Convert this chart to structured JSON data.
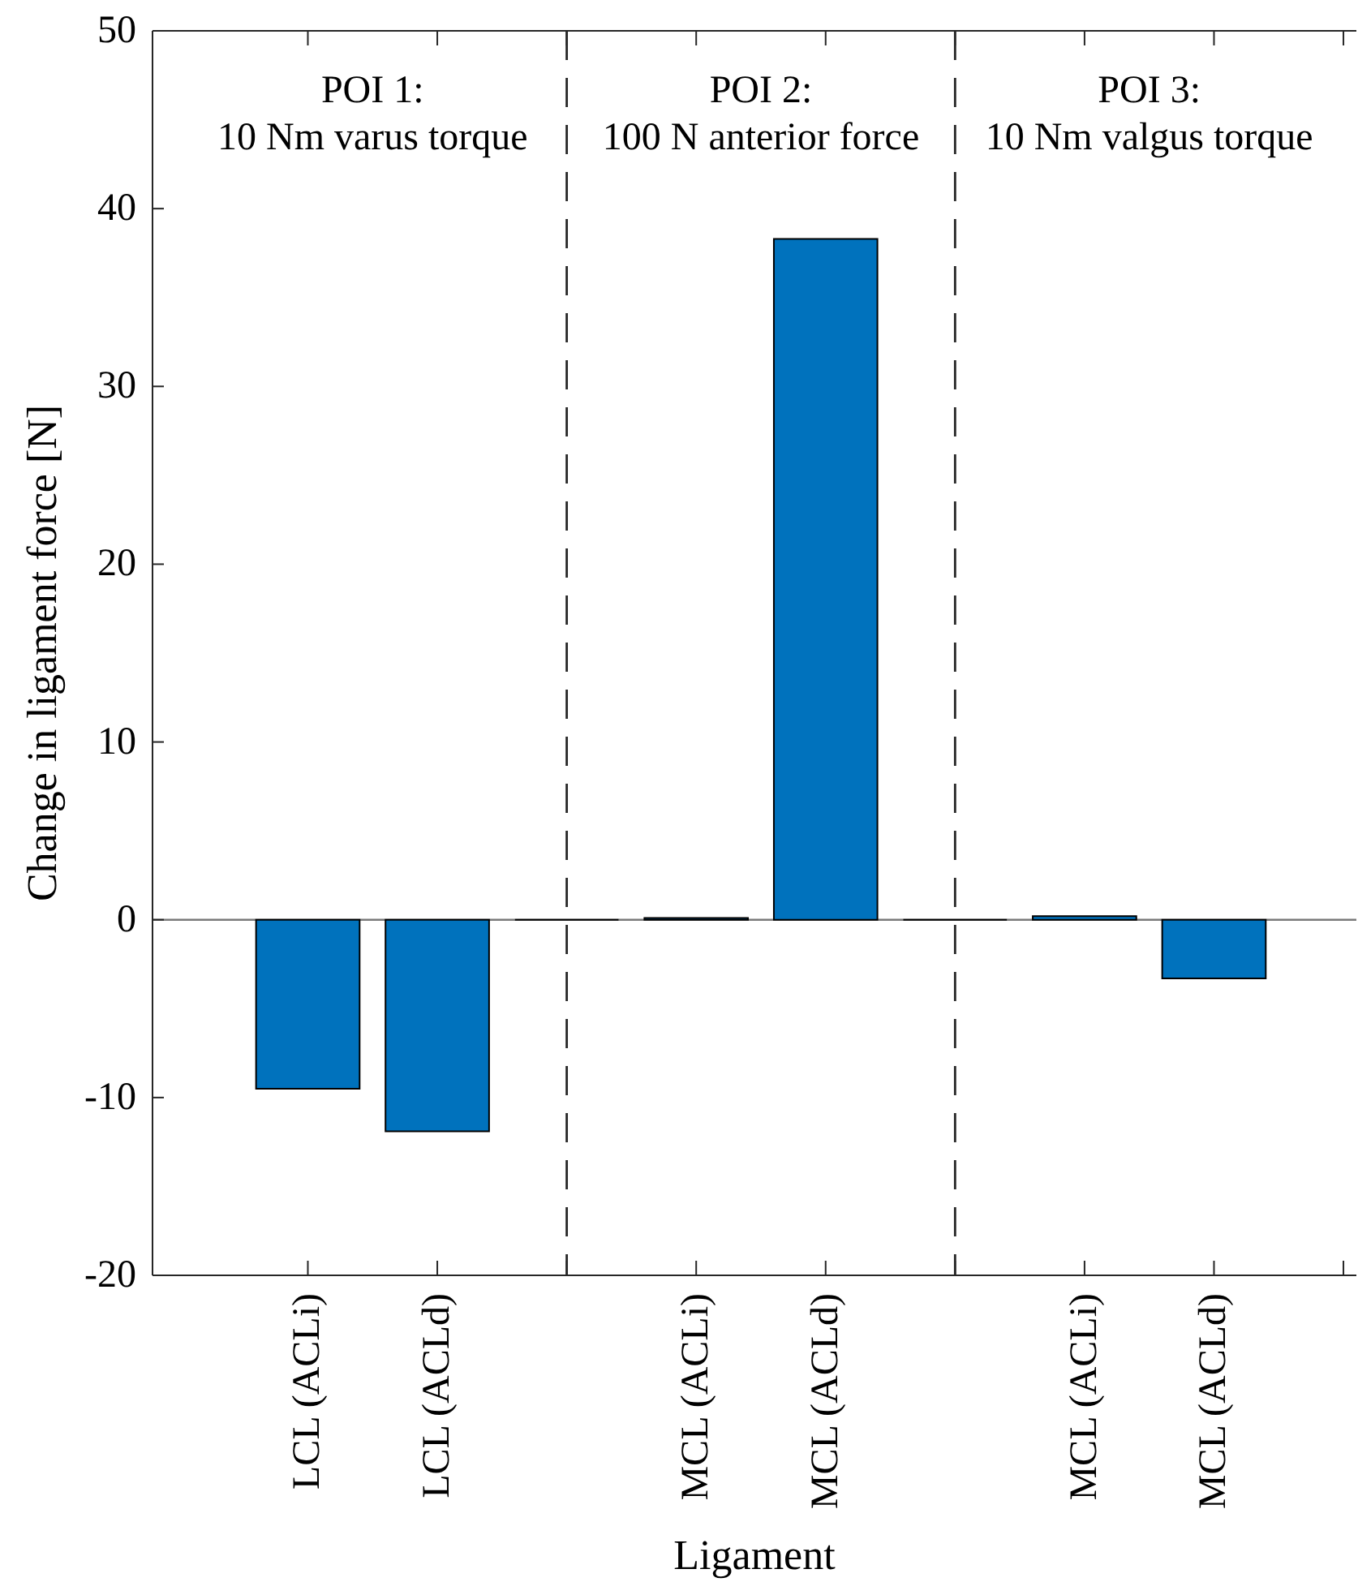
{
  "chart_data": {
    "type": "bar",
    "xlabel": "Ligament",
    "ylabel": "Change in ligament force [N]",
    "categories": [
      "LCL (ACLi)",
      "LCL (ACLd)",
      null,
      "MCL (ACLi)",
      "MCL (ACLd)",
      null,
      "MCL (ACLi)",
      "MCL (ACLd)",
      null
    ],
    "values": [
      -9.5,
      -11.9,
      0,
      0.1,
      38.3,
      0,
      0.2,
      -3.3,
      null
    ],
    "colors": [
      "#0072bd",
      "#0072bd",
      "#000000",
      "#0072bd",
      "#0072bd",
      "#000000",
      "#0072bd",
      "#0072bd",
      null
    ],
    "ylim": [
      -20,
      50
    ],
    "yticks": [
      -20,
      -10,
      0,
      10,
      20,
      30,
      40,
      50
    ],
    "annotations": [
      "POI 1:\n10 Nm varus torque",
      "POI 2:\n100 N anterior force",
      "POI 3:\n10 Nm valgus torque"
    ]
  }
}
